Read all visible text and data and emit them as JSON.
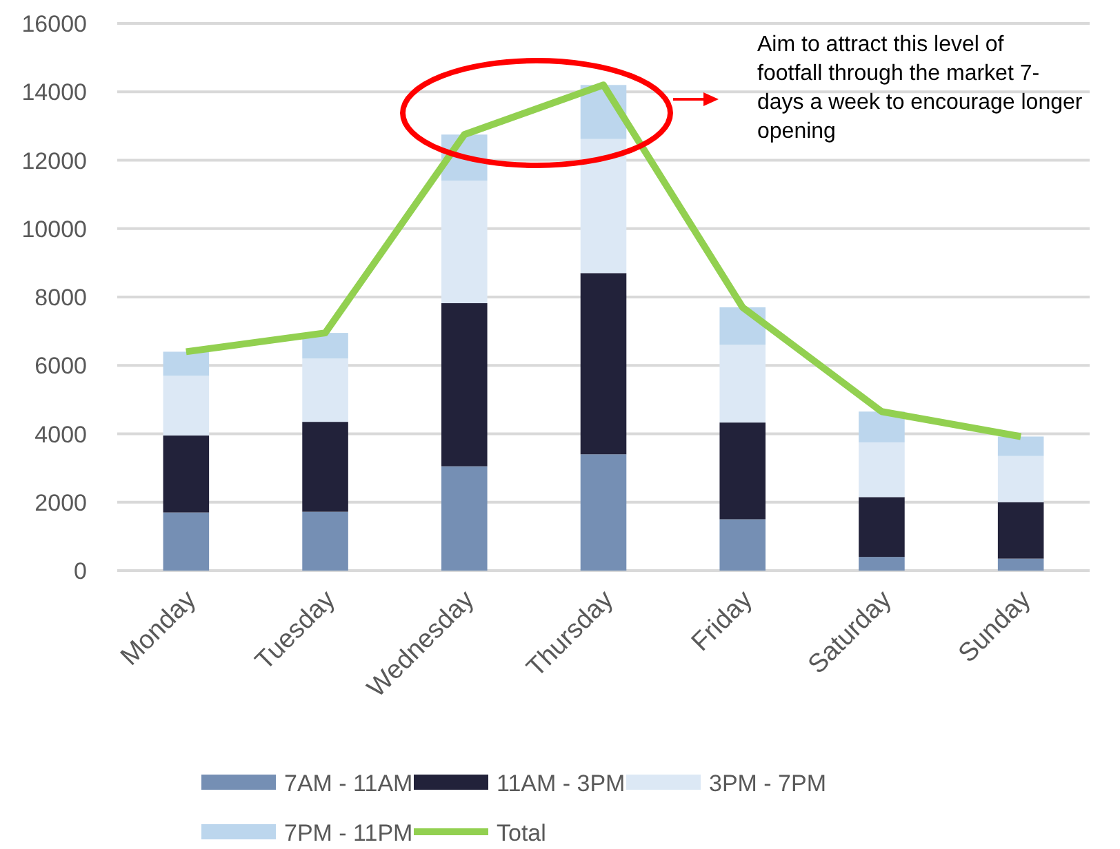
{
  "chart_data": {
    "type": "bar",
    "stacked": true,
    "categories": [
      "Monday",
      "Tuesday",
      "Wednesday",
      "Thursday",
      "Friday",
      "Saturday",
      "Sunday"
    ],
    "series": [
      {
        "name": "7AM - 11AM",
        "color": "#758fb4",
        "values": [
          1700,
          1720,
          3050,
          3400,
          1500,
          400,
          350
        ]
      },
      {
        "name": "11AM - 3PM",
        "color": "#22223a",
        "values": [
          2250,
          2630,
          4770,
          5300,
          2830,
          1750,
          1650
        ]
      },
      {
        "name": "3PM - 7PM",
        "color": "#dce8f5",
        "values": [
          1750,
          1850,
          3580,
          3920,
          2270,
          1600,
          1350
        ]
      },
      {
        "name": "7PM - 11PM",
        "color": "#bcd6ed",
        "values": [
          700,
          750,
          1350,
          1580,
          1100,
          900,
          570
        ]
      },
      {
        "name": "Total",
        "type": "line",
        "color": "#92d050",
        "values": [
          6400,
          6950,
          12750,
          14200,
          7700,
          4650,
          3920
        ]
      }
    ],
    "ylim": [
      0,
      16000
    ],
    "yticks": [
      0,
      2000,
      4000,
      6000,
      8000,
      10000,
      12000,
      14000,
      16000
    ],
    "grid": "y",
    "legend": "bottom",
    "annotations": [
      "Aim to attract this level of footfall through the market 7-days a week to encourage longer opening"
    ]
  }
}
